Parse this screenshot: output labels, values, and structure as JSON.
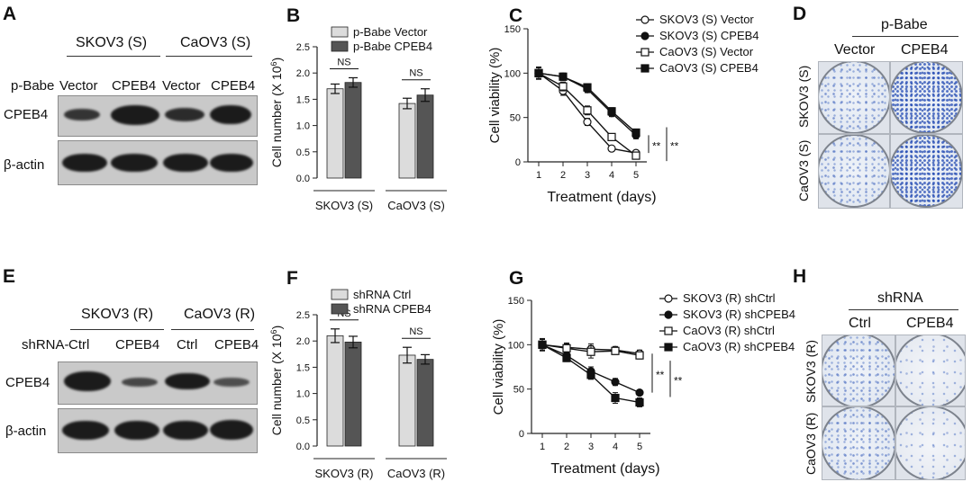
{
  "panels": {
    "A": {
      "label": "A",
      "cell_lines": [
        "SKOV3 (S)",
        "CaOV3 (S)"
      ],
      "row_prefix": "p-Babe",
      "lanes": [
        "Vector",
        "CPEB4",
        "Vector",
        "CPEB4"
      ],
      "rows": [
        "CPEB4",
        "β-actin"
      ]
    },
    "B": {
      "label": "B",
      "chart_data": {
        "type": "bar",
        "categories": [
          "SKOV3 (S)",
          "CaOV3 (S)"
        ],
        "series": [
          {
            "name": "p-Babe Vector",
            "values": [
              1.7,
              1.42
            ],
            "errors": [
              0.09,
              0.1
            ],
            "color": "#dcdcdc"
          },
          {
            "name": "p-Babe CPEB4",
            "values": [
              1.82,
              1.58
            ],
            "errors": [
              0.09,
              0.12
            ],
            "color": "#555555"
          }
        ],
        "ylabel": "Cell number (X 10",
        "ylabel_sup": "6",
        "ylabel_close": ")",
        "ylim": [
          0,
          2.5
        ],
        "yticks": [
          "0.0",
          "0.5",
          "1.0",
          "1.5",
          "2.0",
          "2.5"
        ],
        "annotations": [
          "NS",
          "NS"
        ]
      }
    },
    "C": {
      "label": "C",
      "chart_data": {
        "type": "line",
        "x": [
          1,
          2,
          3,
          4,
          5
        ],
        "series": [
          {
            "name": "SKOV3 (S) Vector",
            "marker": "open-circle",
            "values": [
              100,
              80,
              45,
              15,
              10
            ],
            "errors": [
              6,
              5,
              4,
              3,
              3
            ]
          },
          {
            "name": "SKOV3 (S) CPEB4",
            "marker": "filled-circle",
            "values": [
              100,
              96,
              82,
              55,
              30
            ],
            "errors": [
              6,
              4,
              4,
              4,
              4
            ]
          },
          {
            "name": "CaOV3 (S) Vector",
            "marker": "open-square",
            "values": [
              100,
              85,
              58,
              28,
              7
            ],
            "errors": [
              7,
              5,
              5,
              3,
              2
            ]
          },
          {
            "name": "CaOV3 (S) CPEB4",
            "marker": "filled-square",
            "values": [
              100,
              96,
              84,
              57,
              33
            ],
            "errors": [
              6,
              4,
              4,
              4,
              4
            ]
          }
        ],
        "xlabel": "Treatment (days)",
        "ylabel": "Cell viability (%)",
        "ylim": [
          0,
          150
        ],
        "yticks": [
          "0",
          "50",
          "100",
          "150"
        ],
        "xticks": [
          "1",
          "2",
          "3",
          "4",
          "5"
        ],
        "significance": [
          "**",
          "**"
        ]
      }
    },
    "D": {
      "label": "D",
      "group": "p-Babe",
      "columns": [
        "Vector",
        "CPEB4"
      ],
      "rows": [
        "SKOV3 (S)",
        "CaOV3 (S)"
      ]
    },
    "E": {
      "label": "E",
      "cell_lines": [
        "SKOV3 (R)",
        "CaOV3 (R)"
      ],
      "row_prefix": "shRNA-",
      "lanes": [
        "Ctrl",
        "CPEB4",
        "Ctrl",
        "CPEB4"
      ],
      "rows": [
        "CPEB4",
        "β-actin"
      ]
    },
    "F": {
      "label": "F",
      "chart_data": {
        "type": "bar",
        "categories": [
          "SKOV3 (R)",
          "CaOV3 (R)"
        ],
        "series": [
          {
            "name": "shRNA Ctrl",
            "values": [
              2.1,
              1.73
            ],
            "errors": [
              0.13,
              0.15
            ],
            "color": "#dcdcdc"
          },
          {
            "name": "shRNA CPEB4",
            "values": [
              1.98,
              1.65
            ],
            "errors": [
              0.11,
              0.09
            ],
            "color": "#555555"
          }
        ],
        "ylabel": "Cell number (X 10",
        "ylabel_sup": "6",
        "ylabel_close": ")",
        "ylim": [
          0,
          2.5
        ],
        "yticks": [
          "0.0",
          "0.5",
          "1.0",
          "1.5",
          "2.0",
          "2.5"
        ],
        "annotations": [
          "NS",
          "NS"
        ]
      }
    },
    "G": {
      "label": "G",
      "chart_data": {
        "type": "line",
        "x": [
          1,
          2,
          3,
          4,
          5
        ],
        "series": [
          {
            "name": "SKOV3 (R) shCtrl",
            "marker": "open-circle",
            "values": [
              100,
              97,
              95,
              94,
              90
            ],
            "errors": [
              6,
              5,
              6,
              4,
              4
            ]
          },
          {
            "name": "SKOV3 (R) shCPEB4",
            "marker": "filled-circle",
            "values": [
              100,
              88,
              70,
              58,
              46
            ],
            "errors": [
              6,
              4,
              5,
              4,
              3
            ]
          },
          {
            "name": "CaOV3 (R) shCtrl",
            "marker": "open-square",
            "values": [
              100,
              96,
              92,
              93,
              88
            ],
            "errors": [
              7,
              5,
              7,
              4,
              4
            ]
          },
          {
            "name": "CaOV3 (R) shCPEB4",
            "marker": "filled-square",
            "values": [
              100,
              85,
              66,
              40,
              35
            ],
            "errors": [
              6,
              4,
              5,
              6,
              5
            ]
          }
        ],
        "xlabel": "Treatment (days)",
        "ylabel": "Cell viability (%)",
        "ylim": [
          0,
          150
        ],
        "yticks": [
          "0",
          "50",
          "100",
          "150"
        ],
        "xticks": [
          "1",
          "2",
          "3",
          "4",
          "5"
        ],
        "significance": [
          "**",
          "**"
        ]
      }
    },
    "H": {
      "label": "H",
      "group": "shRNA",
      "columns": [
        "Ctrl",
        "CPEB4"
      ],
      "rows": [
        "SKOV3 (R)",
        "CaOV3 (R)"
      ]
    }
  }
}
